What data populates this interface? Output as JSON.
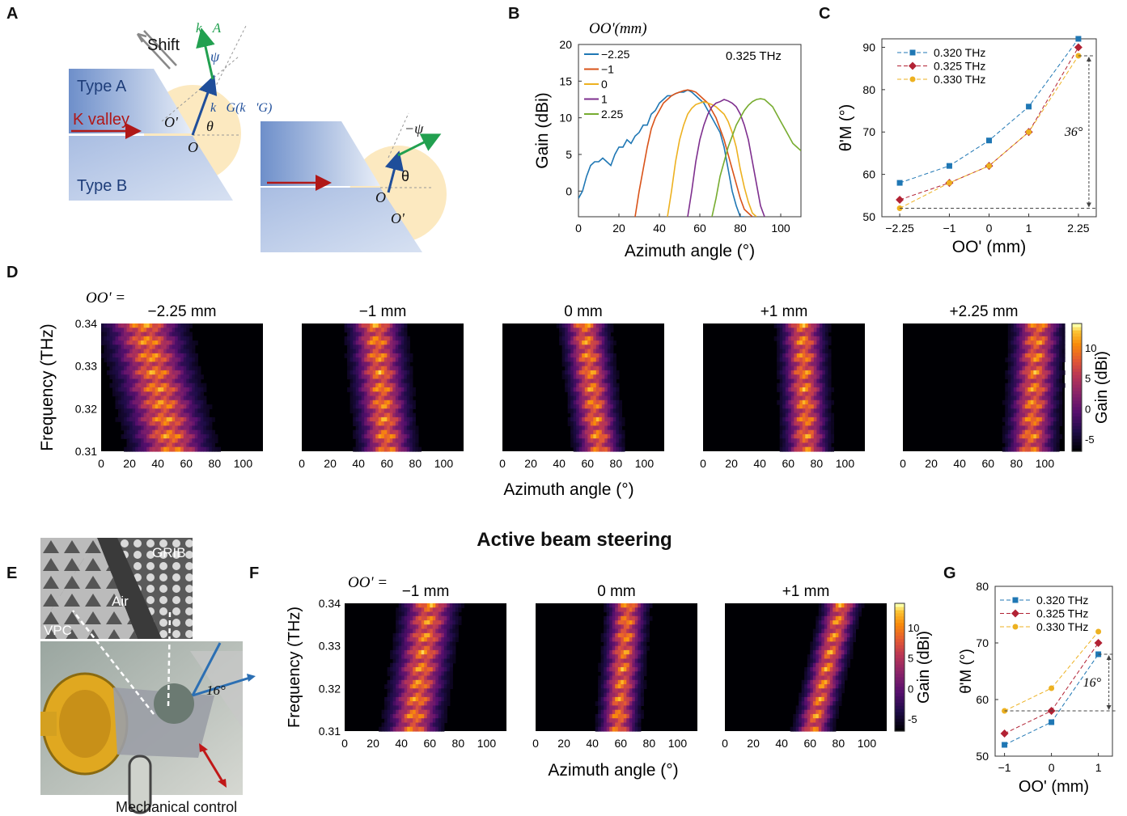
{
  "panel_labels": [
    "A",
    "B",
    "C",
    "D",
    "E",
    "F",
    "G"
  ],
  "panel_a": {
    "shift": "Shift",
    "type_a": "Type A",
    "type_b": "Type B",
    "k_valley": "K valley",
    "k_a": "k⃗A",
    "k_g": "k⃗G(k⃗'G)",
    "psi": "ψ",
    "neg_psi": "−ψ",
    "theta": "θ",
    "theta2": "θ",
    "o": "O",
    "o_prime": "O'",
    "o2": "O",
    "o_prime2": "O'",
    "colors": {
      "type_a": "#8aa6d4",
      "type_b": "#9db4de",
      "k_a": "#22a050",
      "k_g": "#1f4e9a",
      "k_valley": "#b01818",
      "cone": "#fbe3b0"
    }
  },
  "chart_data": [
    {
      "id": "B",
      "type": "line",
      "legend_title": "OO'(mm)",
      "annotation": "0.325 THz",
      "xlabel": "Azimuth angle (°)",
      "ylabel": "Gain (dBi)",
      "xlim": [
        0,
        110
      ],
      "ylim": [
        -3.5,
        20
      ],
      "xticks": [
        0,
        20,
        40,
        60,
        80,
        100
      ],
      "yticks": [
        0,
        5,
        10,
        15,
        20
      ],
      "legend_position": "top-left",
      "series": [
        {
          "name": "−2.25",
          "color": "#1f77b4",
          "x": [
            0,
            2,
            4,
            6,
            8,
            10,
            12,
            14,
            16,
            18,
            20,
            22,
            24,
            26,
            28,
            30,
            32,
            34,
            36,
            38,
            40,
            42,
            44,
            46,
            48,
            50,
            52,
            54,
            56,
            58,
            60,
            62,
            64,
            66,
            68,
            70,
            72,
            74,
            76,
            78,
            80,
            82
          ],
          "y": [
            -1,
            0,
            2,
            3.5,
            4,
            4,
            4.5,
            4,
            3.5,
            5,
            6,
            6,
            7,
            6.5,
            7.5,
            8,
            9,
            9,
            10.5,
            11,
            12,
            12.5,
            13,
            13,
            13.3,
            13.5,
            13.5,
            13.8,
            13.5,
            13,
            12.5,
            12,
            11,
            10,
            9,
            8,
            6,
            3,
            0,
            -2,
            -3.5,
            -3.5
          ]
        },
        {
          "name": "−1",
          "color": "#d95319",
          "x": [
            28,
            30,
            32,
            34,
            36,
            38,
            40,
            42,
            44,
            46,
            48,
            50,
            52,
            54,
            56,
            58,
            60,
            62,
            64,
            66,
            68,
            70,
            72,
            74,
            76,
            78,
            80,
            82,
            84,
            86
          ],
          "y": [
            -3.5,
            0,
            3,
            6,
            8.5,
            10,
            11,
            12,
            12.5,
            13,
            13.3,
            13.5,
            13.7,
            13.8,
            13.7,
            13.5,
            13,
            12.5,
            12,
            11,
            10,
            8.5,
            7,
            5,
            3,
            1,
            -1,
            -2.5,
            -3,
            -3.5
          ]
        },
        {
          "name": "0",
          "color": "#edb120",
          "x": [
            44,
            46,
            48,
            50,
            52,
            54,
            56,
            58,
            60,
            62,
            64,
            66,
            68,
            70,
            72,
            74,
            76,
            78,
            80,
            82,
            84,
            86,
            88
          ],
          "y": [
            -3.5,
            0,
            4,
            7,
            9,
            10.5,
            11.3,
            11.8,
            12,
            12.2,
            12,
            11.8,
            11.5,
            11,
            10.5,
            9.5,
            8,
            6,
            3,
            0.5,
            -1.5,
            -3,
            -3.5
          ]
        },
        {
          "name": "1",
          "color": "#7e2f8e",
          "x": [
            54,
            56,
            58,
            60,
            62,
            64,
            66,
            68,
            70,
            72,
            74,
            76,
            78,
            80,
            82,
            84,
            86,
            88,
            90,
            92
          ],
          "y": [
            -3.5,
            0,
            4,
            7,
            9,
            10.5,
            11.5,
            12,
            12.2,
            12.5,
            12.3,
            12,
            11.5,
            10.5,
            9,
            7,
            4,
            1,
            -2,
            -3.5
          ]
        },
        {
          "name": "2.25",
          "color": "#77ac30",
          "x": [
            66,
            68,
            70,
            72,
            74,
            76,
            78,
            80,
            82,
            84,
            86,
            88,
            90,
            92,
            94,
            96,
            98,
            100,
            102,
            104,
            106,
            108,
            110
          ],
          "y": [
            -3.5,
            -1,
            2,
            4,
            6,
            7.5,
            9,
            10,
            11,
            11.7,
            12.2,
            12.5,
            12.6,
            12.5,
            12,
            11.5,
            10.5,
            9.5,
            8.5,
            7.5,
            6.5,
            6,
            5.5
          ]
        }
      ]
    },
    {
      "id": "C",
      "type": "line",
      "xlabel": "OO' (mm)",
      "ylabel": "θ'M (°)",
      "categories": [
        "−2.25",
        "−1",
        "0",
        "1",
        "2.25"
      ],
      "x": [
        -2.25,
        -1,
        0,
        1,
        2.25
      ],
      "xlim": [
        -2.7,
        2.7
      ],
      "ylim": [
        50,
        92
      ],
      "yticks": [
        50,
        60,
        70,
        80,
        90
      ],
      "legend_position": "top-left",
      "annotation": "36°",
      "series": [
        {
          "name": "0.320 THz",
          "color": "#1f77b4",
          "marker": "square",
          "values": [
            58,
            62,
            68,
            76,
            92
          ]
        },
        {
          "name": "0.325 THz",
          "color": "#b22234",
          "marker": "diamond",
          "values": [
            54,
            58,
            62,
            70,
            90
          ]
        },
        {
          "name": "0.330 THz",
          "color": "#edb120",
          "marker": "circle",
          "values": [
            52,
            58,
            62,
            70,
            88
          ]
        }
      ]
    },
    {
      "id": "D",
      "type": "heatmap",
      "lead_label": "OO' =",
      "xlabel": "Azimuth angle (°)",
      "ylabel": "Frequency (THz)",
      "colorbar_label": "Gain (dBi)",
      "colorbar_ticks": [
        -5,
        0,
        5,
        10
      ],
      "xticks": [
        0,
        20,
        40,
        60,
        80,
        100
      ],
      "yticks": [
        0.31,
        0.32,
        0.33,
        0.34
      ],
      "xlim": [
        0,
        114
      ],
      "ylim": [
        0.31,
        0.34
      ],
      "maps": [
        {
          "title": "−2.25 mm",
          "center_bottom": 50,
          "center_top": 30,
          "width": 26
        },
        {
          "title": "−1 mm",
          "center_bottom": 60,
          "center_top": 52,
          "width": 18
        },
        {
          "title": "0 mm",
          "center_bottom": 68,
          "center_top": 58,
          "width": 15
        },
        {
          "title": "+1 mm",
          "center_bottom": 73,
          "center_top": 70,
          "width": 15
        },
        {
          "title": "+2.25 mm",
          "center_bottom": 90,
          "center_top": 95,
          "width": 16
        }
      ]
    },
    {
      "id": "F",
      "type": "heatmap",
      "lead_label": "OO' =",
      "xlabel": "Azimuth angle (°)",
      "ylabel": "Frequency (THz)",
      "colorbar_label": "Gain (dBi)",
      "colorbar_ticks": [
        -5,
        0,
        5,
        10
      ],
      "xticks": [
        0,
        20,
        40,
        60,
        80,
        100
      ],
      "yticks": [
        0.31,
        0.32,
        0.33,
        0.34
      ],
      "xlim": [
        0,
        114
      ],
      "ylim": [
        0.31,
        0.34
      ],
      "maps": [
        {
          "title": "−1 mm",
          "center_bottom": 48,
          "center_top": 60,
          "width": 18
        },
        {
          "title": "0 mm",
          "center_bottom": 58,
          "center_top": 65,
          "width": 13
        },
        {
          "title": "+1 mm",
          "center_bottom": 62,
          "center_top": 82,
          "width": 12
        }
      ]
    },
    {
      "id": "G",
      "type": "line",
      "xlabel": "OO' (mm)",
      "ylabel": "θ'M (°)",
      "categories": [
        "−1",
        "0",
        "1"
      ],
      "x": [
        -1,
        0,
        1
      ],
      "xlim": [
        -1.2,
        1.3
      ],
      "ylim": [
        50,
        80
      ],
      "yticks": [
        50,
        60,
        70,
        80
      ],
      "legend_position": "top-left",
      "annotation": "16°",
      "series": [
        {
          "name": "0.320 THz",
          "color": "#1f77b4",
          "marker": "square",
          "values": [
            52,
            56,
            68
          ]
        },
        {
          "name": "0.325 THz",
          "color": "#b22234",
          "marker": "diamond",
          "values": [
            54,
            58,
            70
          ]
        },
        {
          "name": "0.330 THz",
          "color": "#edb120",
          "marker": "circle",
          "values": [
            58,
            62,
            72
          ]
        }
      ]
    }
  ],
  "section_title": "Active beam steering",
  "panel_e": {
    "grib": "GRIB",
    "air": "Air",
    "vpc": "VPC",
    "angle": "16°",
    "caption": "Mechanical control"
  }
}
